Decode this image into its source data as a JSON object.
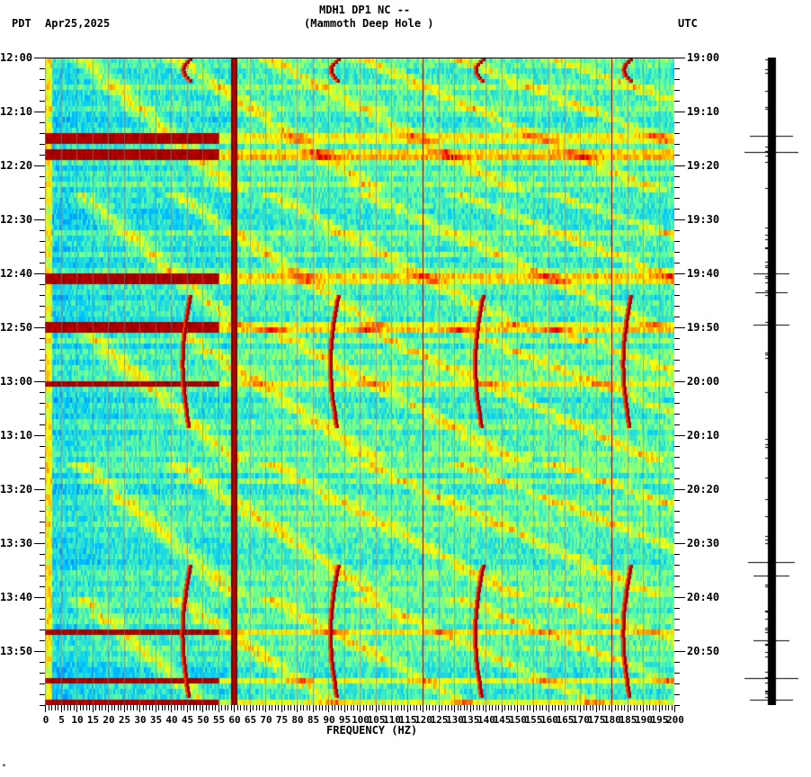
{
  "header": {
    "timezone_left": "PDT",
    "date": "Apr25,2025",
    "station_line": "MDH1 DP1 NC --",
    "station_name": "(Mammoth Deep Hole )",
    "timezone_right": "UTC"
  },
  "footer": {
    "mark": "*"
  },
  "chart_data": {
    "type": "heatmap",
    "title": "MDH1 DP1 NC -- (Mammoth Deep Hole )",
    "subtitle": "Apr25,2025",
    "xlabel": "FREQUENCY (HZ)",
    "ylabel_left": "PDT",
    "ylabel_right": "UTC",
    "xlim": [
      0,
      200
    ],
    "x_ticks": [
      0,
      5,
      10,
      15,
      20,
      25,
      30,
      35,
      40,
      45,
      50,
      55,
      60,
      65,
      70,
      75,
      80,
      85,
      90,
      95,
      100,
      105,
      110,
      115,
      120,
      125,
      130,
      135,
      140,
      145,
      150,
      155,
      160,
      165,
      170,
      175,
      180,
      185,
      190,
      195,
      200
    ],
    "y_ticks_left": [
      "12:00",
      "12:10",
      "12:20",
      "12:30",
      "12:40",
      "12:50",
      "13:00",
      "13:10",
      "13:20",
      "13:30",
      "13:40",
      "13:50"
    ],
    "y_ticks_right": [
      "19:00",
      "19:10",
      "19:20",
      "19:30",
      "19:40",
      "19:50",
      "20:00",
      "20:10",
      "20:20",
      "20:30",
      "20:40",
      "20:50"
    ],
    "time_range_minutes": 120,
    "colormap": [
      "#00008f",
      "#0050ff",
      "#00c8ff",
      "#60ffa0",
      "#ffff00",
      "#ff8000",
      "#ff0000",
      "#800000"
    ],
    "features": {
      "constant_lines_hz": [
        60,
        120,
        180
      ],
      "drifting_lines": [
        {
          "center_hz": 46,
          "segments_min": [
            [
              0,
              4
            ],
            [
              44,
              68
            ],
            [
              94,
              118
            ]
          ]
        },
        {
          "center_hz": 93,
          "segments_min": [
            [
              0,
              4
            ],
            [
              44,
              68
            ],
            [
              94,
              118
            ]
          ]
        },
        {
          "center_hz": 139,
          "segments_min": [
            [
              0,
              4
            ],
            [
              44,
              68
            ],
            [
              94,
              118
            ]
          ]
        },
        {
          "center_hz": 186,
          "segments_min": [
            [
              0,
              4
            ],
            [
              44,
              68
            ],
            [
              94,
              118
            ]
          ]
        }
      ],
      "broadband_events_min": [
        14.5,
        17.5,
        40.5,
        49.5,
        60,
        106,
        115,
        119
      ],
      "gliding_arcs_period_min": 50
    },
    "seismogram_events_min": [
      14.5,
      17.5,
      40,
      43.5,
      49.5,
      93.5,
      96,
      108,
      115,
      119
    ]
  }
}
